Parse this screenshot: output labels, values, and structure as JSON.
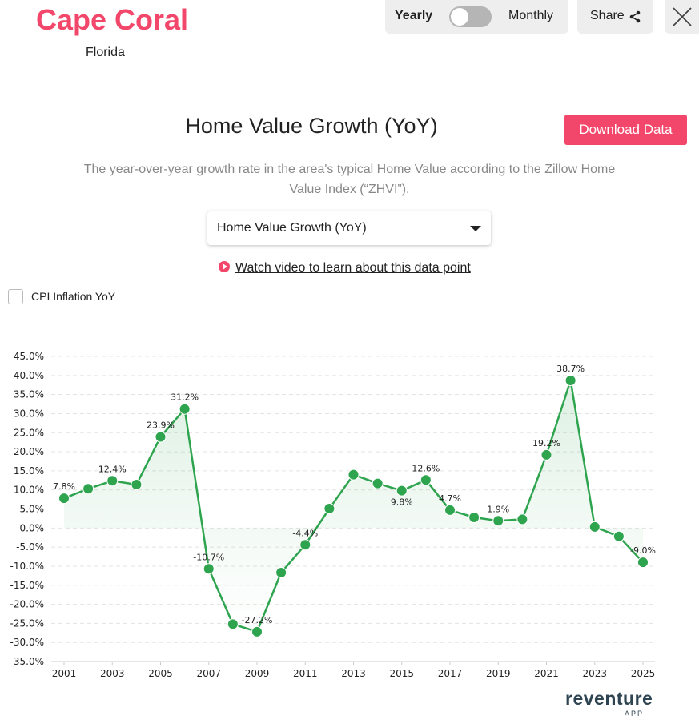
{
  "header": {
    "city": "Cape Coral",
    "state": "Florida"
  },
  "toggle": {
    "left_label": "Yearly",
    "right_label": "Monthly",
    "selected": "Yearly"
  },
  "share_label": "Share",
  "main": {
    "title": "Home Value Growth (YoY)",
    "download_label": "Download Data",
    "description": "The year-over-year growth rate in the area's typical Home Value according to the Zillow Home Value Index (“ZHVI”).",
    "select_value": "Home Value Growth (YoY)",
    "video_link": "Watch video to learn about this data point",
    "cpi_label": "CPI Inflation YoY"
  },
  "logo": {
    "text": "reventure",
    "sub": "APP"
  },
  "colors": {
    "accent": "#f2476a",
    "line": "#2ea44f"
  },
  "chart_data": {
    "type": "line",
    "title": "",
    "xlabel": "",
    "ylabel": "",
    "x": [
      2001,
      2002,
      2003,
      2004,
      2005,
      2006,
      2007,
      2008,
      2009,
      2010,
      2011,
      2012,
      2013,
      2014,
      2015,
      2016,
      2017,
      2018,
      2019,
      2020,
      2021,
      2022,
      2023,
      2024,
      2025
    ],
    "values": [
      7.8,
      10.3,
      12.4,
      11.4,
      23.9,
      31.2,
      -10.7,
      -25.2,
      -27.2,
      -11.7,
      -4.4,
      5.1,
      14.0,
      11.7,
      9.8,
      12.6,
      4.7,
      2.8,
      1.9,
      2.3,
      19.2,
      38.7,
      0.3,
      -2.2,
      -9.0
    ],
    "data_labels": {
      "2001": "7.8%",
      "2003": "12.4%",
      "2005": "23.9%",
      "2006": "31.2%",
      "2007": "-10.7%",
      "2009": "-27.2%",
      "2011": "-4.4%",
      "2015": "9.8%",
      "2016": "12.6%",
      "2017": "4.7%",
      "2019": "1.9%",
      "2021": "19.2%",
      "2022": "38.7%",
      "2025": "-9.0%"
    },
    "ylim": [
      -35,
      45
    ],
    "yticks": [
      "45.0%",
      "40.0%",
      "35.0%",
      "30.0%",
      "25.0%",
      "20.0%",
      "15.0%",
      "10.0%",
      "5.0%",
      "0.0%",
      "-5.0%",
      "-10.0%",
      "-15.0%",
      "-20.0%",
      "-25.0%",
      "-30.0%",
      "-35.0%"
    ],
    "xticks": [
      "2001",
      "2003",
      "2005",
      "2007",
      "2009",
      "2011",
      "2013",
      "2015",
      "2017",
      "2019",
      "2021",
      "2023",
      "2025"
    ],
    "grid": true,
    "area_fill": true
  }
}
